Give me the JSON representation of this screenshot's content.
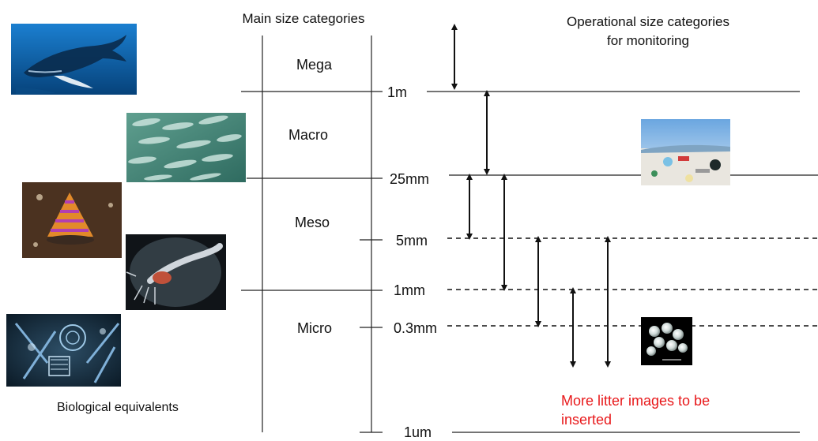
{
  "headers": {
    "main": "Main size categories",
    "operational_line1": "Operational size categories",
    "operational_line2": "for monitoring"
  },
  "categories": [
    "Mega",
    "Macro",
    "Meso",
    "Micro"
  ],
  "size_marks": [
    "1m",
    "25mm",
    "5mm",
    "1mm",
    "0.3mm",
    "1um"
  ],
  "bio_caption": "Biological equivalents",
  "note_line1": "More litter images to be",
  "note_line2": "inserted",
  "images": [
    {
      "name": "humpback-whale-image",
      "subject": "humpback whale"
    },
    {
      "name": "fish-school-image",
      "subject": "school of fish"
    },
    {
      "name": "sea-snail-image",
      "subject": "sea snail"
    },
    {
      "name": "krill-image",
      "subject": "krill"
    },
    {
      "name": "plankton-image",
      "subject": "plankton"
    },
    {
      "name": "beach-litter-image",
      "subject": "beach litter"
    },
    {
      "name": "plastic-pellets-image",
      "subject": "plastic pellets"
    }
  ],
  "colors": {
    "line": "#222222",
    "note": "#e8191b",
    "ocean": "#0d69b5",
    "fish": "#7fb6a5"
  }
}
